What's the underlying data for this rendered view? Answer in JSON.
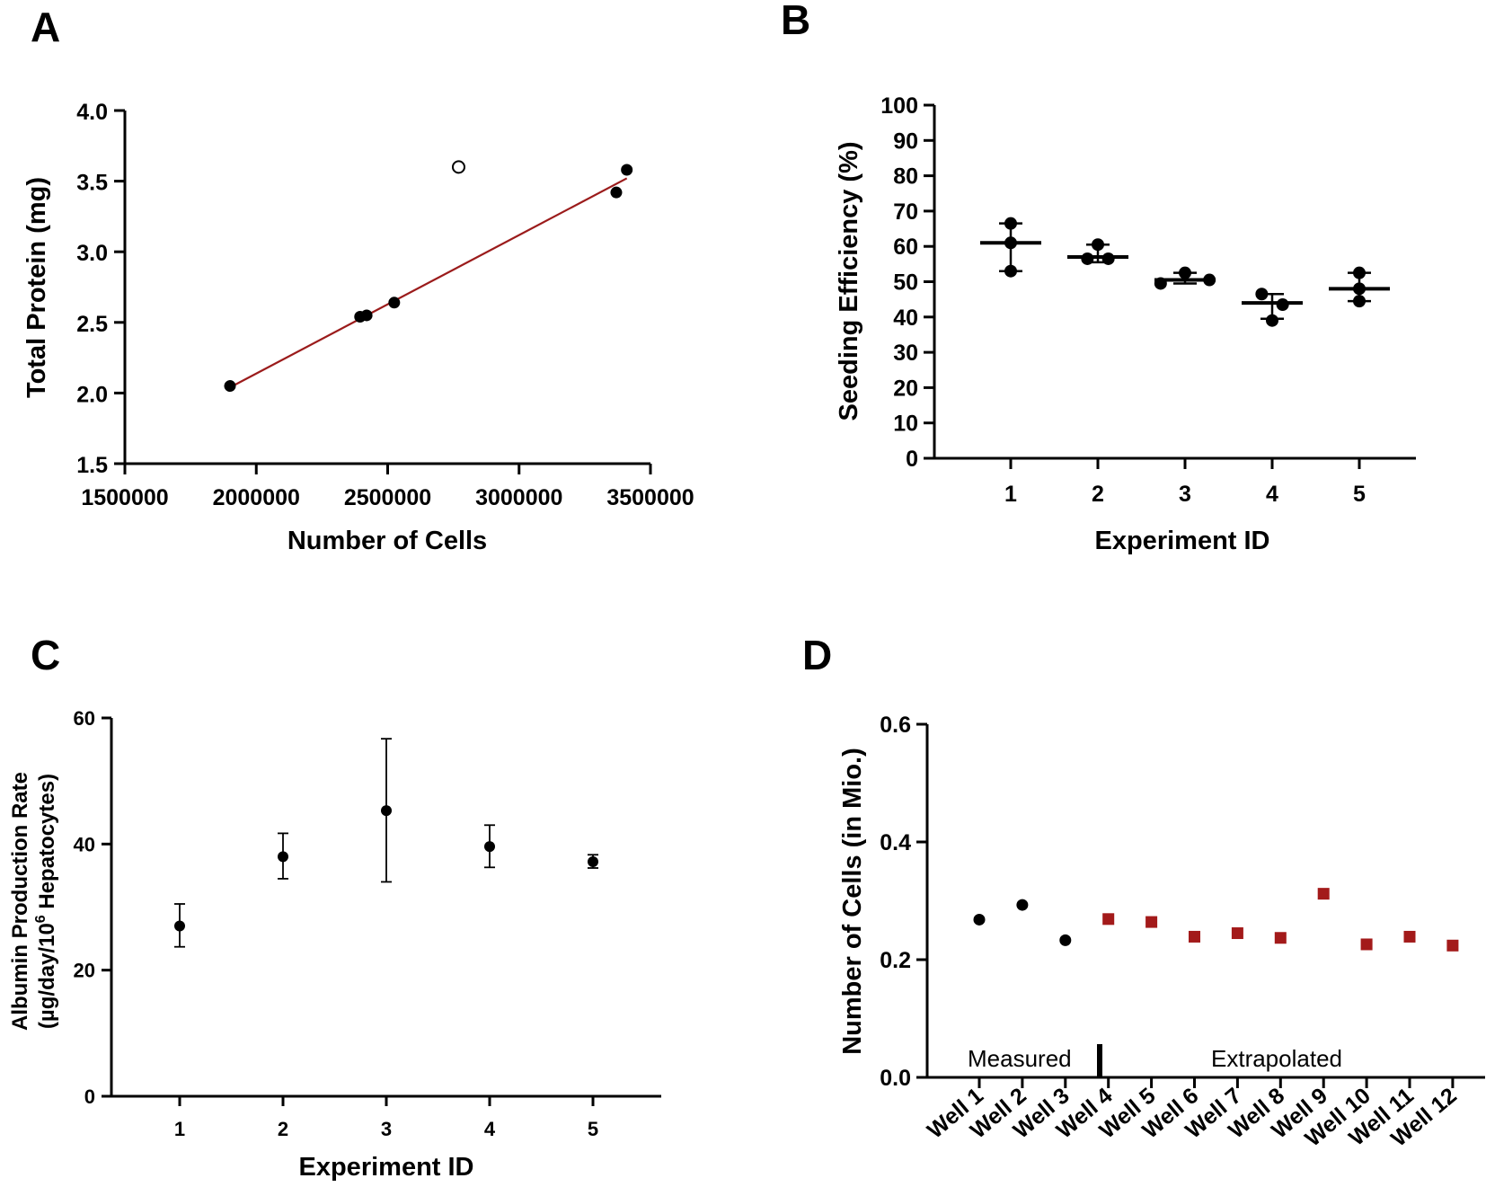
{
  "colors": {
    "fit_line": "#9b1b1b",
    "extrapolated": "#a31a1a",
    "ink": "#000000"
  },
  "panels": {
    "a": "A",
    "b": "B",
    "c": "C",
    "d": "D"
  },
  "chart_data": [
    {
      "panel": "A",
      "type": "scatter",
      "xlabel": "Number of Cells",
      "ylabel": "Total Protein (mg)",
      "xlim": [
        1500000,
        3500000
      ],
      "ylim": [
        1.5,
        4.0
      ],
      "xticks": [
        1500000,
        2000000,
        2500000,
        3000000,
        3500000
      ],
      "xtick_labels": [
        "1500000",
        "2000000",
        "2500000",
        "3000000",
        "3500000"
      ],
      "yticks": [
        1.5,
        2.0,
        2.5,
        3.0,
        3.5,
        4.0
      ],
      "ytick_labels": [
        "1.5",
        "2.0",
        "2.5",
        "3.0",
        "3.5",
        "4.0"
      ],
      "points": [
        {
          "x": 1900000,
          "y": 2.05
        },
        {
          "x": 2395000,
          "y": 2.54
        },
        {
          "x": 2420000,
          "y": 2.55
        },
        {
          "x": 2525000,
          "y": 2.64
        },
        {
          "x": 3370000,
          "y": 3.42
        },
        {
          "x": 3410000,
          "y": 3.58
        }
      ],
      "outliers": [
        {
          "x": 2770000,
          "y": 3.6
        }
      ],
      "fit_line": {
        "x": [
          1900000,
          3410000
        ],
        "y": [
          2.04,
          3.52
        ]
      }
    },
    {
      "panel": "B",
      "type": "scatter",
      "xlabel": "Experiment ID",
      "ylabel": "Seeding Efficiency (%)",
      "ylim": [
        0,
        100
      ],
      "yticks": [
        0,
        10,
        20,
        30,
        40,
        50,
        60,
        70,
        80,
        90,
        100
      ],
      "ytick_labels": [
        "0",
        "10",
        "20",
        "30",
        "40",
        "50",
        "60",
        "70",
        "80",
        "90",
        "100"
      ],
      "categories": [
        "1",
        "2",
        "3",
        "4",
        "5"
      ],
      "groups": [
        {
          "id": "1",
          "points": [
            66.5,
            61.0,
            53.0
          ],
          "offsets": [
            0,
            0,
            0
          ],
          "mean": 61.0,
          "sd_low": 53.0,
          "sd_high": 66.5
        },
        {
          "id": "2",
          "points": [
            60.5,
            56.5,
            56.5
          ],
          "offsets": [
            0,
            -0.12,
            0.12
          ],
          "mean": 57.0,
          "sd_low": 55.5,
          "sd_high": 60.5
        },
        {
          "id": "3",
          "points": [
            52.5,
            49.5,
            50.5
          ],
          "offsets": [
            0,
            -0.28,
            0.28
          ],
          "mean": 50.5,
          "sd_low": 49.5,
          "sd_high": 52.5
        },
        {
          "id": "4",
          "points": [
            46.5,
            39.0,
            43.5
          ],
          "offsets": [
            -0.12,
            0,
            0.12
          ],
          "mean": 44.0,
          "sd_low": 39.5,
          "sd_high": 46.5
        },
        {
          "id": "5",
          "points": [
            52.5,
            48.0,
            44.5
          ],
          "offsets": [
            0,
            0,
            0
          ],
          "mean": 48.0,
          "sd_low": 44.5,
          "sd_high": 52.5
        }
      ]
    },
    {
      "panel": "C",
      "type": "scatter",
      "xlabel": "Experiment ID",
      "ylabel_line1": "Albumin Production Rate",
      "ylabel_line2_prefix": "(µg/day/10",
      "ylabel_sup": "6",
      "ylabel_line2_suffix": " Hepatocytes)",
      "ylim": [
        0,
        60
      ],
      "yticks": [
        0,
        20,
        40,
        60
      ],
      "ytick_labels": [
        "0",
        "20",
        "40",
        "60"
      ],
      "categories": [
        "1",
        "2",
        "3",
        "4",
        "5"
      ],
      "means": [
        27.0,
        38.0,
        45.3,
        39.6,
        37.2
      ],
      "err_low": [
        23.7,
        34.5,
        34.0,
        36.3,
        36.2
      ],
      "err_high": [
        30.5,
        41.7,
        56.7,
        43.0,
        38.3
      ]
    },
    {
      "panel": "D",
      "type": "scatter",
      "ylabel": "Number of Cells (in Mio.)",
      "ylim": [
        0,
        0.6
      ],
      "yticks": [
        0,
        0.2,
        0.4,
        0.6
      ],
      "ytick_labels": [
        "0.0",
        "0.2",
        "0.4",
        "0.6"
      ],
      "categories": [
        "Well 1",
        "Well 2",
        "Well 3",
        "Well 4",
        "Well 5",
        "Well 6",
        "Well 7",
        "Well 8",
        "Well 9",
        "Well 10",
        "Well 11",
        "Well 12"
      ],
      "series": [
        {
          "name": "Measured",
          "marker": "circle",
          "indices": [
            0,
            1,
            2
          ],
          "values": [
            0.268,
            0.293,
            0.233
          ]
        },
        {
          "name": "Extrapolated",
          "marker": "square",
          "indices": [
            3,
            4,
            5,
            6,
            7,
            8,
            9,
            10,
            11
          ],
          "values": [
            0.269,
            0.264,
            0.239,
            0.245,
            0.237,
            0.312,
            0.226,
            0.239,
            0.224
          ]
        }
      ],
      "annotations": [
        "Measured",
        "Extrapolated"
      ]
    }
  ]
}
